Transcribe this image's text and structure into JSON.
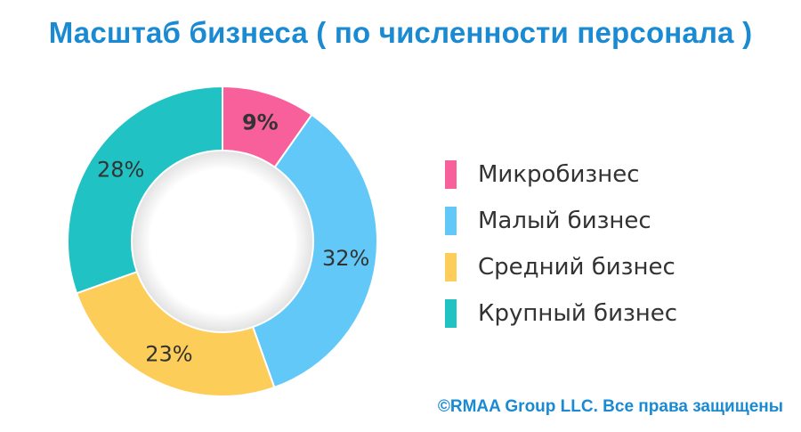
{
  "chart_data": {
    "type": "pie",
    "title": "Масштаб бизнеса ( по численности персонала )",
    "categories": [
      "Микробизнес",
      "Малый бизнес",
      "Средний бизнес",
      "Крупный бизнес"
    ],
    "values": [
      9,
      32,
      23,
      28
    ],
    "labels": [
      "9%",
      "32%",
      "23%",
      "28%"
    ],
    "colors": [
      "#f7609a",
      "#62c8f7",
      "#fccd58",
      "#21c2c4"
    ],
    "legend": "right",
    "donut": true
  },
  "footer": {
    "copyright": "©RMAA Group LLC. Все права защищены"
  },
  "colors": {
    "title": "#1a8ad3",
    "label_text": "#333333"
  }
}
